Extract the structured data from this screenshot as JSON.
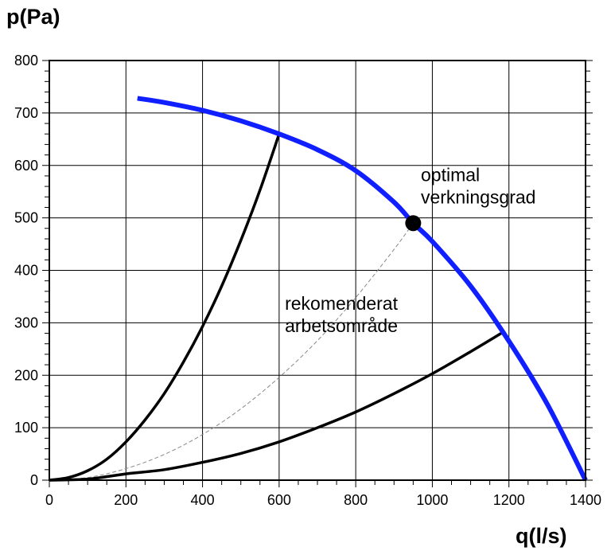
{
  "chart_data": {
    "type": "line",
    "xlabel": "q(l/s)",
    "ylabel": "p(Pa)",
    "xlim": [
      0,
      1400
    ],
    "ylim": [
      0,
      800
    ],
    "x_ticks": [
      0,
      200,
      400,
      600,
      800,
      1000,
      1200,
      1400
    ],
    "y_ticks": [
      0,
      100,
      200,
      300,
      400,
      500,
      600,
      700,
      800
    ],
    "grid": true,
    "colors": {
      "fan_curve": "#0f1fff",
      "system_curve": "#000000",
      "optimal_curve": "#888888"
    },
    "series": [
      {
        "key": "fan_curve",
        "x": [
          230,
          300,
          400,
          500,
          600,
          700,
          800,
          900,
          950,
          1000,
          1100,
          1200,
          1300,
          1400
        ],
        "y": [
          728,
          720,
          705,
          685,
          660,
          630,
          590,
          530,
          490,
          455,
          370,
          265,
          145,
          0
        ]
      },
      {
        "key": "system_curve_steep",
        "x": [
          0,
          50,
          100,
          150,
          200,
          250,
          300,
          350,
          400,
          450,
          500,
          550,
          600
        ],
        "y": [
          0,
          5,
          18,
          40,
          73,
          115,
          165,
          225,
          293,
          370,
          457,
          553,
          660
        ]
      },
      {
        "key": "system_curve_optimal",
        "x": [
          0,
          100,
          200,
          300,
          400,
          500,
          600,
          700,
          800,
          900,
          950
        ],
        "y": [
          0,
          5,
          22,
          49,
          87,
          136,
          196,
          266,
          348,
          440,
          490
        ]
      },
      {
        "key": "system_curve_flat",
        "x": [
          0,
          100,
          200,
          300,
          400,
          500,
          600,
          700,
          800,
          900,
          1000,
          1100,
          1180
        ],
        "y": [
          0,
          2,
          12,
          20,
          34,
          51,
          73,
          100,
          130,
          165,
          203,
          245,
          280
        ]
      }
    ],
    "point": {
      "x": 950,
      "y": 490
    },
    "annotations": [
      {
        "lines": [
          "optimal",
          "verkningsgrad"
        ],
        "x": 970,
        "y": 570
      },
      {
        "lines": [
          "rekomenderat",
          "arbetsområde"
        ],
        "x": 615,
        "y": 325
      }
    ]
  }
}
